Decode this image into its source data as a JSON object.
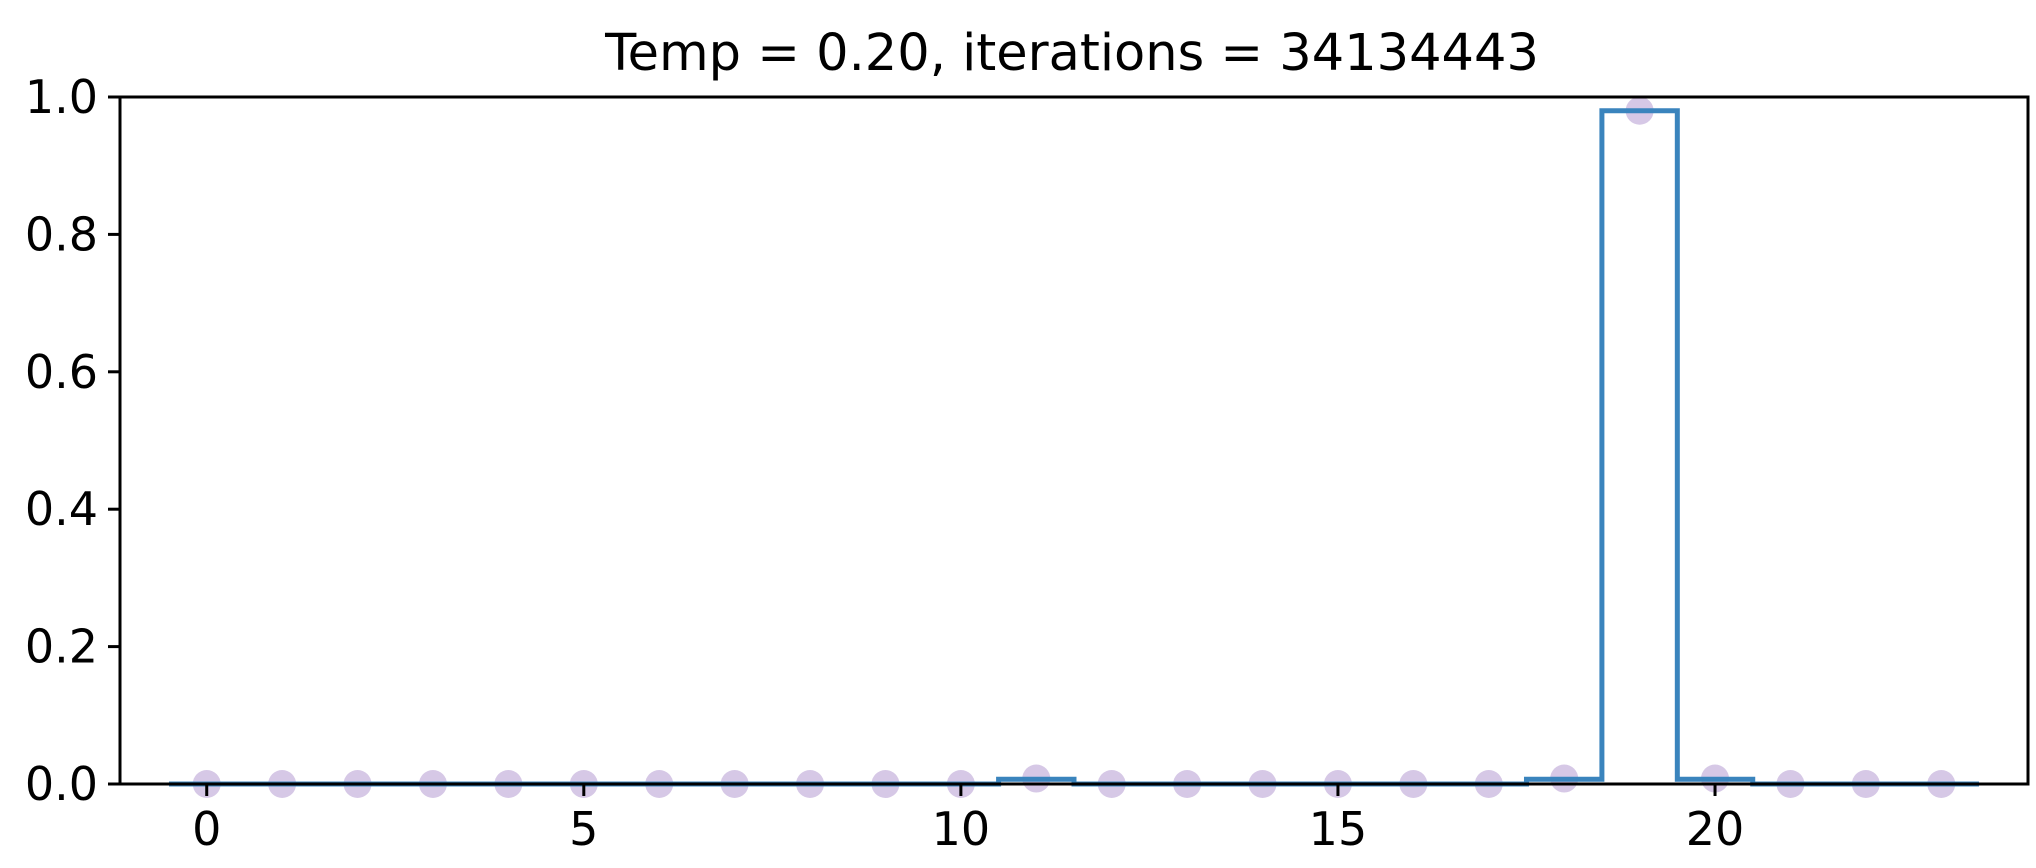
{
  "chart_data": {
    "type": "scatter",
    "title": "Temp = 0.20, iterations = 34134443",
    "xlabel": "",
    "ylabel": "",
    "xlim": [
      -1.15,
      24.15
    ],
    "ylim": [
      0.0,
      1.0
    ],
    "xticks": [
      0,
      5,
      10,
      15,
      20
    ],
    "yticks": [
      0.0,
      0.2,
      0.4,
      0.6,
      0.8,
      1.0
    ],
    "xtick_labels": [
      "0",
      "5",
      "10",
      "15",
      "20"
    ],
    "ytick_labels": [
      "0.0",
      "0.2",
      "0.4",
      "0.6",
      "0.8",
      "1.0"
    ],
    "grid": false,
    "series": [
      {
        "kind": "step",
        "color": "#3a84bd",
        "x": [
          0,
          1,
          2,
          3,
          4,
          5,
          6,
          7,
          8,
          9,
          10,
          11,
          12,
          13,
          14,
          15,
          16,
          17,
          18,
          19,
          20,
          21,
          22,
          23
        ],
        "values": [
          0,
          0,
          0,
          0,
          0,
          0,
          0,
          0,
          0,
          0,
          0,
          0.007,
          0,
          0,
          0,
          0,
          0,
          0,
          0.007,
          0.98,
          0.007,
          0,
          0,
          0
        ]
      },
      {
        "kind": "scatter",
        "color": "#b49ad2",
        "x": [
          0,
          1,
          2,
          3,
          4,
          5,
          6,
          7,
          8,
          9,
          10,
          11,
          12,
          13,
          14,
          15,
          16,
          17,
          18,
          19,
          20,
          21,
          22,
          23
        ],
        "values": [
          0,
          0,
          0,
          0,
          0,
          0,
          0,
          0,
          0,
          0,
          0,
          0.008,
          0,
          0,
          0,
          0,
          0,
          0,
          0.008,
          0.98,
          0.008,
          0,
          0,
          0
        ]
      }
    ]
  }
}
